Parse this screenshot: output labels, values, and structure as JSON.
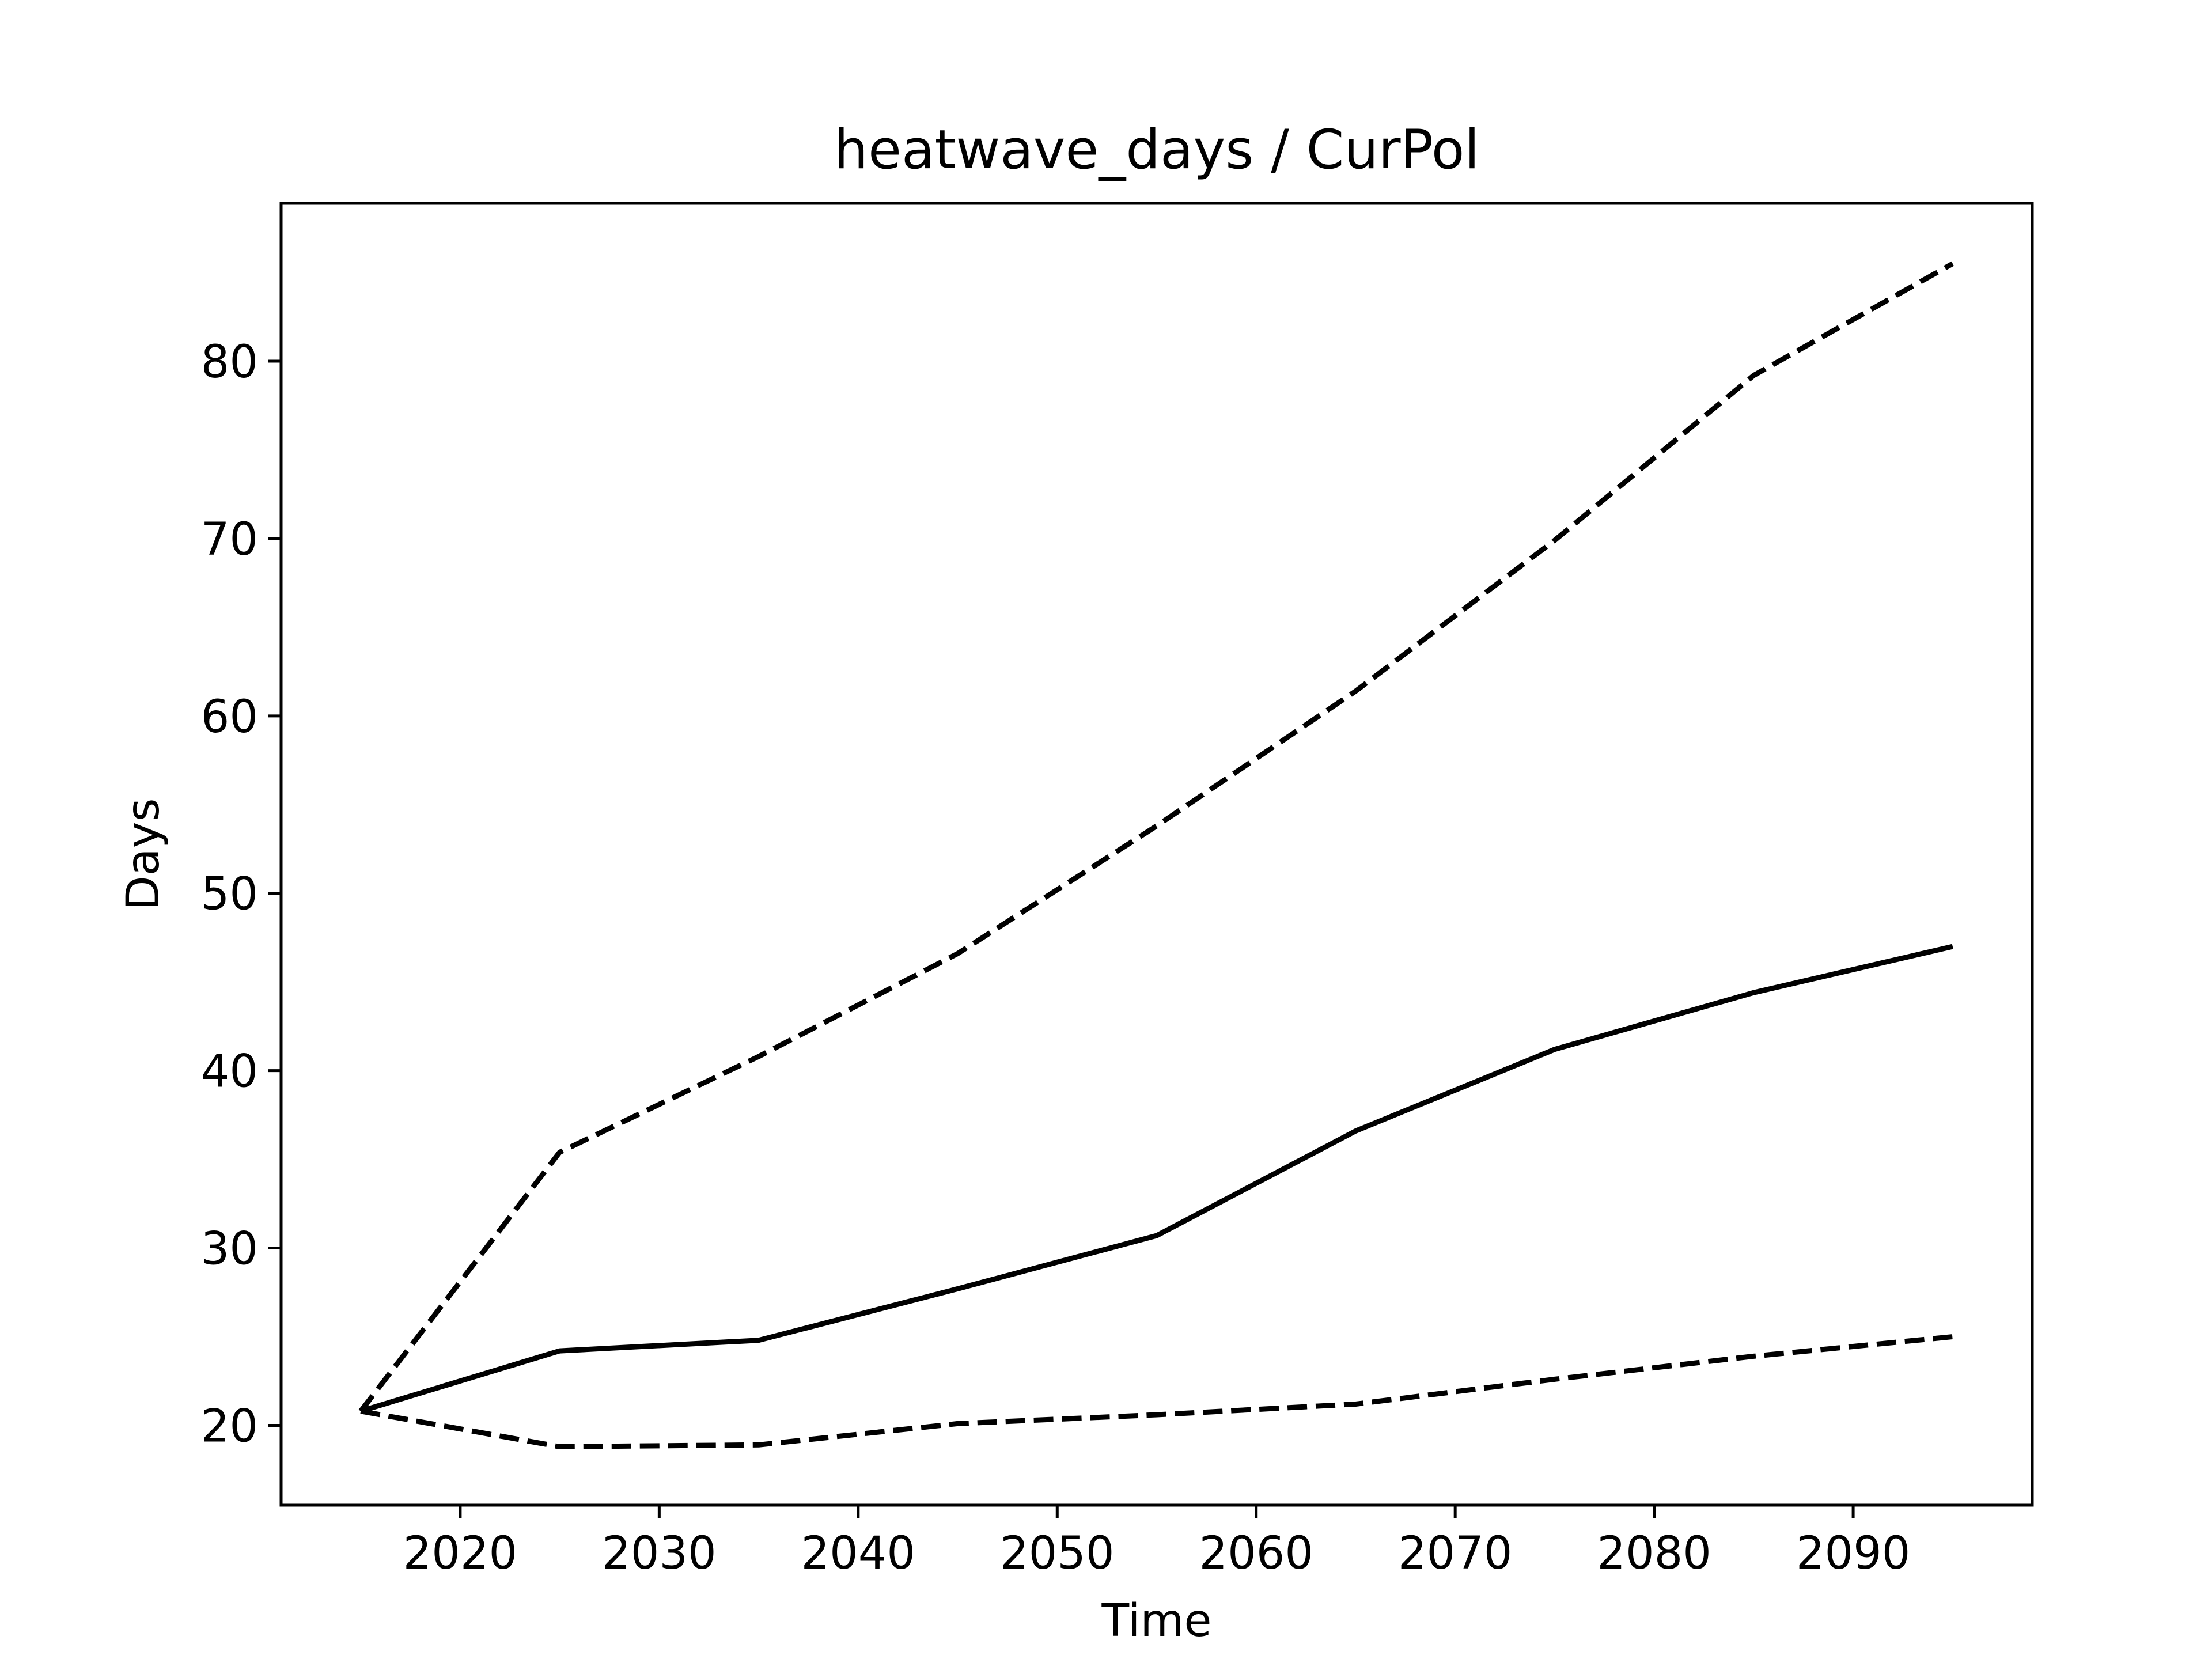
{
  "chart_data": {
    "type": "line",
    "title": "heatwave_days / CurPol",
    "xlabel": "Time",
    "ylabel": "Days",
    "xlim": [
      2011,
      2099
    ],
    "ylim": [
      15.5,
      88.9
    ],
    "xticks": [
      2020,
      2030,
      2040,
      2050,
      2060,
      2070,
      2080,
      2090
    ],
    "yticks": [
      20,
      30,
      40,
      50,
      60,
      70,
      80
    ],
    "grid": false,
    "legend": "none",
    "x": [
      2015,
      2025,
      2035,
      2045,
      2055,
      2065,
      2075,
      2085,
      2095
    ],
    "series": [
      {
        "line_style": "solid",
        "color": "#000000",
        "values": [
          20.8,
          24.2,
          24.8,
          27.7,
          30.7,
          36.6,
          41.2,
          44.4,
          47.0
        ]
      },
      {
        "line_style": "dashed",
        "color": "#000000",
        "values": [
          20.8,
          35.4,
          40.8,
          46.6,
          53.8,
          61.4,
          69.9,
          79.2,
          85.5
        ]
      },
      {
        "line_style": "dashed",
        "color": "#000000",
        "values": [
          20.8,
          18.8,
          18.9,
          20.1,
          20.6,
          21.2,
          22.6,
          23.9,
          25.0
        ]
      }
    ]
  }
}
